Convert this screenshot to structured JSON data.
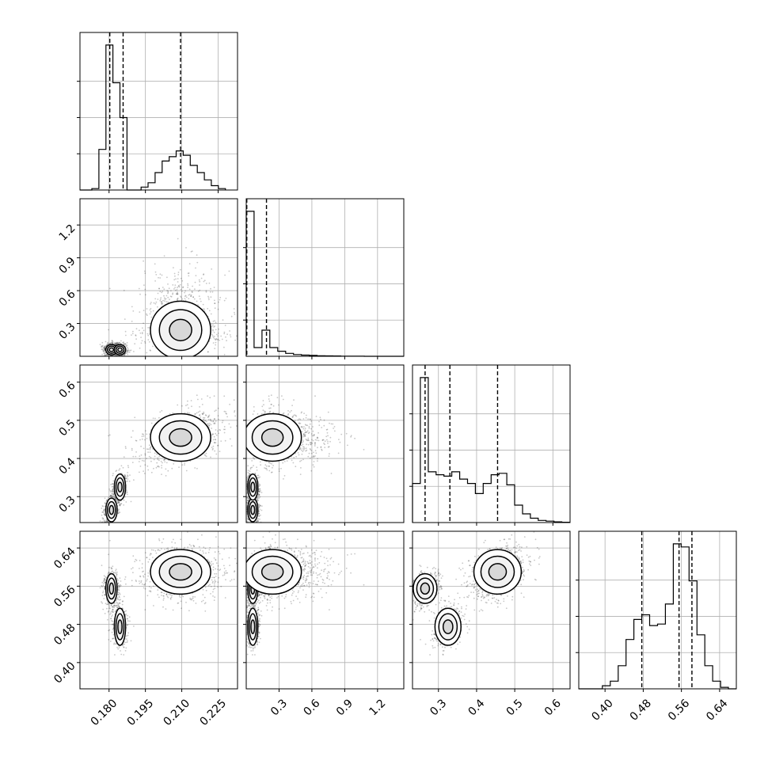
{
  "chart_data": {
    "type": "corner",
    "title": "",
    "grid": true,
    "n_params": 4,
    "params": [
      {
        "label": "",
        "range": [
          0.168,
          0.233
        ],
        "ticks": [
          "0.180",
          "0.195",
          "0.210",
          "0.225"
        ],
        "tick_values": [
          0.18,
          0.195,
          0.21,
          0.225
        ],
        "quantiles": [
          0.1803,
          0.1858,
          0.2095
        ]
      },
      {
        "label": "",
        "range": [
          0.0,
          1.44
        ],
        "ticks": [
          "0.3",
          "0.6",
          "0.9",
          "1.2"
        ],
        "tick_values": [
          0.3,
          0.6,
          0.9,
          1.2
        ],
        "quantiles": [
          0.005,
          0.185
        ]
      },
      {
        "label": "",
        "range": [
          0.232,
          0.645
        ],
        "ticks": [
          "0.3",
          "0.4",
          "0.5",
          "0.6"
        ],
        "tick_values": [
          0.3,
          0.4,
          0.5,
          0.6
        ],
        "quantiles": [
          0.265,
          0.33,
          0.455
        ]
      },
      {
        "label": "",
        "range": [
          0.345,
          0.675
        ],
        "ticks": [
          "0.40",
          "0.48",
          "0.56",
          "0.64"
        ],
        "tick_values": [
          0.4,
          0.48,
          0.56,
          0.64
        ],
        "quantiles": [
          0.477,
          0.555,
          0.582
        ]
      }
    ],
    "histograms": [
      {
        "param": 0,
        "bin_start": 0.17,
        "bin_width": 0.0029,
        "counts": [
          0,
          0.01,
          0.28,
          1,
          0.74,
          0.5,
          0,
          0,
          0.02,
          0.05,
          0.12,
          0.2,
          0.23,
          0.27,
          0.24,
          0.17,
          0.12,
          0.07,
          0.03,
          0.01
        ]
      },
      {
        "param": 1,
        "bin_start": 0.0,
        "bin_width": 0.072,
        "counts": [
          1,
          0.06,
          0.18,
          0.06,
          0.035,
          0.02,
          0.012,
          0.008,
          0.006,
          0.004,
          0.003,
          0.002,
          0.001,
          0.001,
          0.001,
          0,
          0,
          0,
          0,
          0
        ]
      },
      {
        "param": 2,
        "bin_start": 0.232,
        "bin_width": 0.0206,
        "counts": [
          0.27,
          1,
          0.35,
          0.33,
          0.32,
          0.35,
          0.3,
          0.27,
          0.2,
          0.27,
          0.33,
          0.34,
          0.26,
          0.12,
          0.06,
          0.03,
          0.015,
          0.01,
          0.005,
          0.002
        ]
      },
      {
        "param": 3,
        "bin_start": 0.345,
        "bin_width": 0.0165,
        "counts": [
          0,
          0,
          0,
          0.02,
          0.05,
          0.15,
          0.32,
          0.45,
          0.48,
          0.41,
          0.42,
          0.55,
          0.94,
          0.92,
          0.7,
          0.35,
          0.15,
          0.05,
          0.01,
          0
        ]
      }
    ],
    "clusters": [
      {
        "name": "",
        "weight": 0.27,
        "mean": [
          0.181,
          0.06,
          0.265,
          0.555
        ],
        "sd": [
          0.0015,
          0.03,
          0.02,
          0.02
        ]
      },
      {
        "name": "",
        "weight": 0.23,
        "mean": [
          0.1845,
          0.06,
          0.325,
          0.475
        ],
        "sd": [
          0.0015,
          0.03,
          0.022,
          0.025
        ]
      },
      {
        "name": "",
        "weight": 0.5,
        "mean": [
          0.2095,
          0.24,
          0.455,
          0.59
        ],
        "sd": [
          0.008,
          0.17,
          0.04,
          0.03
        ]
      }
    ]
  }
}
